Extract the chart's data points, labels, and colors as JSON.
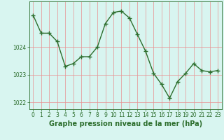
{
  "x": [
    0,
    1,
    2,
    3,
    4,
    5,
    6,
    7,
    8,
    9,
    10,
    11,
    12,
    13,
    14,
    15,
    16,
    17,
    18,
    19,
    20,
    21,
    22,
    23
  ],
  "y": [
    1025.15,
    1024.5,
    1024.5,
    1024.2,
    1023.3,
    1023.4,
    1023.65,
    1023.65,
    1024.0,
    1024.85,
    1025.25,
    1025.3,
    1025.05,
    1024.45,
    1023.85,
    1023.05,
    1022.65,
    1022.15,
    1022.75,
    1023.05,
    1023.4,
    1023.15,
    1023.1,
    1023.15
  ],
  "line_color": "#2d6e2d",
  "marker": "+",
  "bg_color": "#d8f5f0",
  "grid_color": "#e89090",
  "axis_color": "#2d6e2d",
  "xlabel": "Graphe pression niveau de la mer (hPa)",
  "ylim": [
    1021.75,
    1025.65
  ],
  "yticks": [
    1022,
    1023,
    1024
  ],
  "xticks": [
    0,
    1,
    2,
    3,
    4,
    5,
    6,
    7,
    8,
    9,
    10,
    11,
    12,
    13,
    14,
    15,
    16,
    17,
    18,
    19,
    20,
    21,
    22,
    23
  ],
  "tick_fontsize": 5.5,
  "label_fontsize": 7.0,
  "linewidth": 1.0,
  "markersize": 4,
  "markeredgewidth": 1.0
}
